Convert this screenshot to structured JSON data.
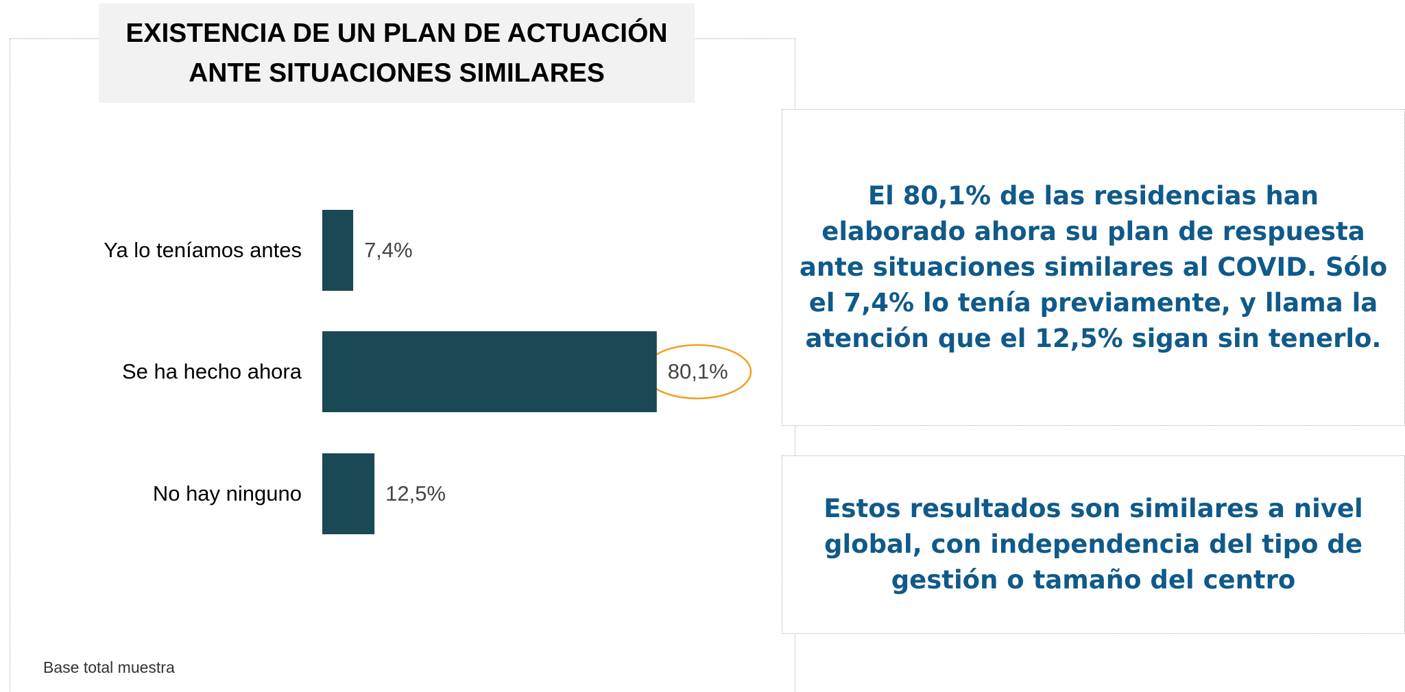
{
  "chart_data": {
    "type": "barh",
    "title": "EXISTENCIA DE UN PLAN DE ACTUACIÓN ANTE SITUACIONES SIMILARES",
    "categories": [
      "Ya lo teníamos antes",
      "Se ha hecho ahora",
      "No hay ninguno"
    ],
    "values": [
      7.4,
      80.1,
      12.5
    ],
    "value_labels": [
      "7,4%",
      "80,1%",
      "12,5%"
    ],
    "color": "#1a4855",
    "footnote": "Base total muestra"
  },
  "notes": [
    "El 80,1% de las residencias han elaborado ahora su plan de respuesta ante situaciones similares al COVID. Sólo el 7,4% lo tenía previamente, y llama la atención que el 12,5% sigan sin tenerlo.",
    "Estos resultados son similares a nivel global, con independencia del tipo de gestión o tamaño del centro"
  ]
}
